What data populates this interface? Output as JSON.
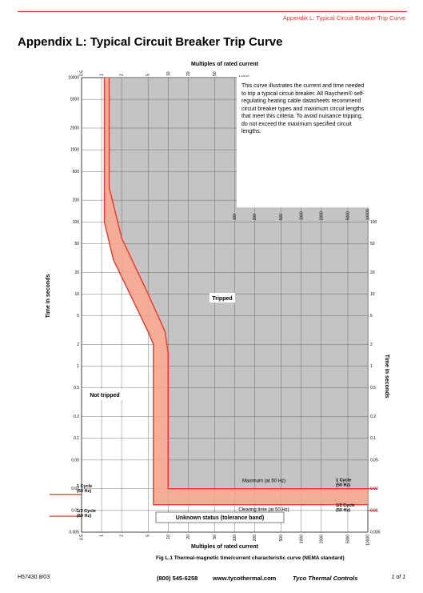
{
  "header": {
    "running_title": "Appendix L: Typical Circuit Breaker Trip Curve"
  },
  "title": "Appendix L: Typical Circuit Breaker Trip Curve",
  "chart_data": {
    "type": "line",
    "x_label": "Multiples of rated current",
    "y_label": "Time in seconds",
    "log_x": true,
    "log_y": true,
    "grid": true,
    "xlim": [
      0.5,
      10000
    ],
    "xticks": [
      0.5,
      1,
      2,
      5,
      10,
      20,
      50,
      100,
      200,
      500,
      1000,
      2000,
      5000,
      10000
    ],
    "ylim": [
      0.005,
      10000
    ],
    "yticks": [
      0.005,
      0.01,
      0.02,
      0.05,
      0.1,
      0.2,
      0.5,
      1,
      2,
      5,
      10,
      20,
      50,
      100,
      200,
      500,
      1000,
      2000,
      5000,
      10000
    ],
    "series": [
      {
        "name": "Clearing time (at 50 Hz)",
        "color": "#e8392b",
        "x": [
          1.1,
          1.1,
          1.5,
          3,
          5,
          6,
          6,
          10000
        ],
        "values": [
          10000,
          100,
          30,
          8,
          3,
          2,
          0.012,
          0.012
        ]
      },
      {
        "name": "Maximum (at 50 Hz)",
        "color": "#e8392b",
        "x": [
          1.3,
          1.3,
          2,
          5,
          9,
          10,
          10,
          10000
        ],
        "values": [
          10000,
          300,
          60,
          10,
          3,
          1.5,
          0.02,
          0.02
        ]
      }
    ],
    "reference_lines": [
      {
        "value": 0.0167,
        "label": [
          "1 Cycle",
          "(60 Hz)"
        ]
      },
      {
        "value": 0.0083,
        "label": [
          "1/2 Cycle",
          "(60 Hz)"
        ]
      },
      {
        "value": 0.02,
        "label": [
          "1 Cycle",
          "(50 Hz)"
        ]
      },
      {
        "value": 0.01,
        "label": [
          "1/2 Cycle",
          "(50 Hz)"
        ]
      }
    ],
    "tripped_label": "Tripped",
    "not_tripped_label": "Not tripped",
    "unknown_label": "Unknown status (tolerance band)",
    "note": "This curve illustrates the current and time needed to trip a typical circuit breaker. All Raychem® self-regulating heating cable datasheets recommend circuit breaker types and maximum circuit lengths that meet this criteria. To avoid nuisance tripping, do not exceed the maximum specified circuit lengths."
  },
  "caption": "Fig L.1  Thermal-magnetic time/current characteristic curve (NEMA standard)",
  "footer": {
    "doc_id": "H57430  8/03",
    "phone": "(800) 545-6258",
    "web": "www.tycothermal.com",
    "company": "Tyco Thermal Controls",
    "page": "1 of 1"
  }
}
